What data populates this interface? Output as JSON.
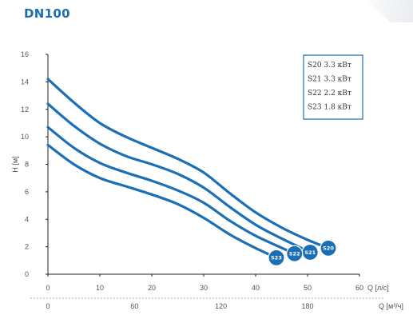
{
  "title": "DN100",
  "chart_data": {
    "type": "line",
    "title": "DN100",
    "ylabel": "H [м]",
    "xlabel": "Q [л/с]",
    "x2label": "Q [м³/ч]",
    "xlim": [
      0,
      60
    ],
    "ylim": [
      0,
      16
    ],
    "x_ticks": [
      "0",
      "10",
      "20",
      "30",
      "40",
      "50",
      "60"
    ],
    "y_ticks": [
      "0",
      "2",
      "4",
      "6",
      "8",
      "10",
      "12",
      "14",
      "16"
    ],
    "x2_ticks": [
      {
        "q": 0,
        "label": "0"
      },
      {
        "q": 16.67,
        "label": "60"
      },
      {
        "q": 33.33,
        "label": "120"
      },
      {
        "q": 50,
        "label": "180"
      }
    ],
    "color": "#1a6fb5",
    "legend": [
      "S20 3.3 кВт",
      "S21 3.3 кВт",
      "S22 2.2 кВт",
      "S23 1.8 кВт"
    ],
    "legend_position": "top-right",
    "series": [
      {
        "name": "S20",
        "badge": "S20",
        "x": [
          0,
          5,
          10,
          15,
          20,
          25,
          30,
          35,
          40,
          45,
          50,
          54
        ],
        "y": [
          14.2,
          12.5,
          11.0,
          10.0,
          9.2,
          8.4,
          7.4,
          5.9,
          4.5,
          3.4,
          2.5,
          1.9
        ]
      },
      {
        "name": "S21",
        "badge": "S21",
        "x": [
          0,
          5,
          10,
          15,
          20,
          25,
          30,
          35,
          40,
          45,
          50.5
        ],
        "y": [
          12.4,
          10.8,
          9.5,
          8.6,
          8.0,
          7.3,
          6.3,
          4.9,
          3.6,
          2.6,
          1.6
        ]
      },
      {
        "name": "S22",
        "badge": "S22",
        "x": [
          0,
          5,
          10,
          15,
          20,
          25,
          30,
          35,
          40,
          47.5
        ],
        "y": [
          10.7,
          9.2,
          8.1,
          7.4,
          6.8,
          6.1,
          5.2,
          3.9,
          2.8,
          1.5
        ]
      },
      {
        "name": "S23",
        "badge": "S23",
        "x": [
          0,
          5,
          10,
          15,
          20,
          25,
          30,
          35,
          40,
          44
        ],
        "y": [
          9.4,
          8.0,
          7.0,
          6.4,
          5.8,
          5.1,
          4.1,
          2.9,
          1.9,
          1.2
        ]
      }
    ]
  }
}
